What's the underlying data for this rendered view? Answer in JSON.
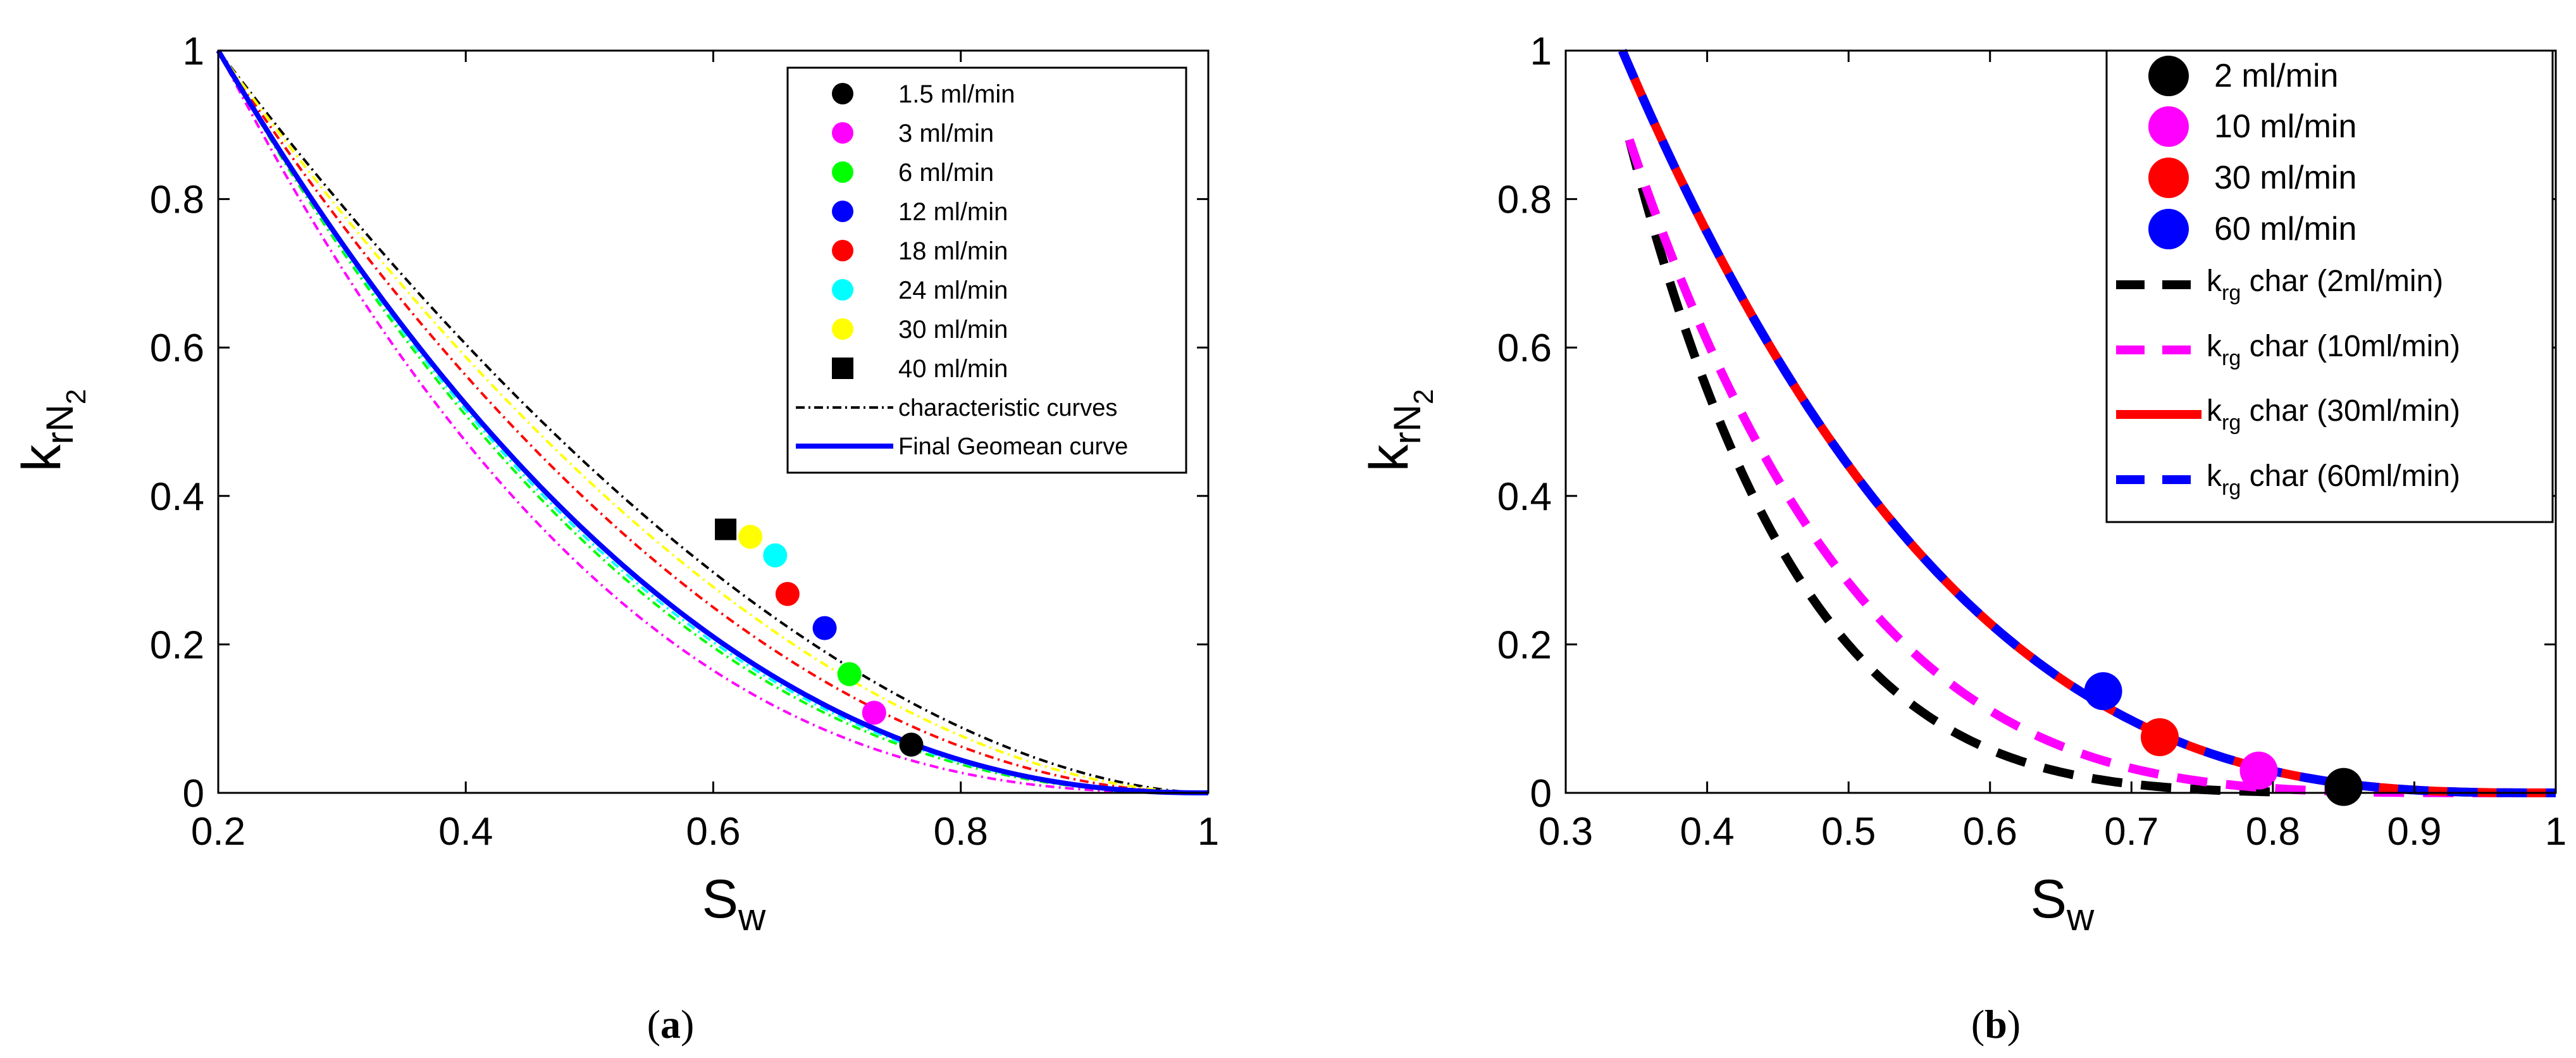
{
  "chart_data": [
    {
      "panel": "a",
      "caption_prefix": "(",
      "caption_letter": "a",
      "caption_suffix": ")",
      "type": "scatter",
      "xlim": [
        0.2,
        1
      ],
      "ylim": [
        0,
        1
      ],
      "xticks": [
        0.2,
        0.4,
        0.6,
        0.8,
        1
      ],
      "yticks": [
        0,
        0.2,
        0.4,
        0.6,
        0.8,
        1
      ],
      "xtick_labels": [
        "0.2",
        "0.4",
        "0.6",
        "0.8",
        "1"
      ],
      "ytick_labels": [
        "0",
        "0.2",
        "0.4",
        "0.6",
        "0.8",
        "1"
      ],
      "xlabel_main": "S",
      "xlabel_sub": "w",
      "ylabel_main": "k",
      "ylabel_sub1": "rN",
      "ylabel_sub2": "2",
      "grid": false,
      "legend_position": "top-right",
      "points": [
        {
          "name": "1.5 ml/min",
          "x": 0.76,
          "y": 0.065,
          "color": "#000000",
          "marker": "circle"
        },
        {
          "name": "3 ml/min",
          "x": 0.73,
          "y": 0.108,
          "color": "#ff00ff",
          "marker": "circle"
        },
        {
          "name": "6 ml/min",
          "x": 0.71,
          "y": 0.16,
          "color": "#00ff00",
          "marker": "circle"
        },
        {
          "name": "12 ml/min",
          "x": 0.69,
          "y": 0.222,
          "color": "#0000ff",
          "marker": "circle"
        },
        {
          "name": "18 ml/min",
          "x": 0.66,
          "y": 0.268,
          "color": "#ff0000",
          "marker": "circle"
        },
        {
          "name": "24 ml/min",
          "x": 0.65,
          "y": 0.32,
          "color": "#00ffff",
          "marker": "circle"
        },
        {
          "name": "30 ml/min",
          "x": 0.63,
          "y": 0.345,
          "color": "#ffff00",
          "marker": "circle"
        },
        {
          "name": "40 ml/min",
          "x": 0.61,
          "y": 0.355,
          "color": "#000000",
          "marker": "square"
        }
      ],
      "char_curves": [
        {
          "color": "#000000",
          "exponent": 1.75
        },
        {
          "color": "#ff00ff",
          "exponent": 2.6
        },
        {
          "color": "#00ff00",
          "exponent": 2.35
        },
        {
          "color": "#0000ff",
          "exponent": 2.25
        },
        {
          "color": "#ff0000",
          "exponent": 2.0
        },
        {
          "color": "#00ffff",
          "exponent": 2.3
        },
        {
          "color": "#ffff00",
          "exponent": 1.85
        }
      ],
      "final_curve": {
        "name": "Final Geomean curve",
        "color": "#0000ff",
        "exponent": 2.25
      },
      "char_curves_label": "characteristic curves"
    },
    {
      "panel": "b",
      "caption_prefix": "(",
      "caption_letter": "b",
      "caption_suffix": ")",
      "type": "scatter",
      "xlim": [
        0.3,
        1
      ],
      "ylim": [
        0,
        1
      ],
      "xticks": [
        0.3,
        0.4,
        0.5,
        0.6,
        0.7,
        0.8,
        0.9,
        1
      ],
      "yticks": [
        0,
        0.2,
        0.4,
        0.6,
        0.8,
        1
      ],
      "xtick_labels": [
        "0.3",
        "0.4",
        "0.5",
        "0.6",
        "0.7",
        "0.8",
        "0.9",
        "1"
      ],
      "ytick_labels": [
        "0",
        "0.2",
        "0.4",
        "0.6",
        "0.8",
        "1"
      ],
      "xlabel_main": "S",
      "xlabel_sub": "w",
      "ylabel_main": "k",
      "ylabel_sub1": "rN",
      "ylabel_sub2": "2",
      "grid": false,
      "legend_position": "top-right",
      "points": [
        {
          "name": "2 ml/min",
          "x": 0.85,
          "y": 0.008,
          "color": "#000000"
        },
        {
          "name": "10 ml/min",
          "x": 0.79,
          "y": 0.03,
          "color": "#ff00ff"
        },
        {
          "name": "30 ml/min",
          "x": 0.72,
          "y": 0.075,
          "color": "#ff0000"
        },
        {
          "name": "60 ml/min",
          "x": 0.68,
          "y": 0.137,
          "color": "#0000ff"
        }
      ],
      "curves": [
        {
          "legend_main": "k",
          "legend_sub": "rg",
          "legend_rest": " char (2ml/min)",
          "color": "#000000",
          "style": "dashed",
          "x0": 0.345,
          "y0": 0.88,
          "a": 5.5,
          "x1": 0.8
        },
        {
          "legend_main": "k",
          "legend_sub": "rg",
          "legend_rest": " char (10ml/min)",
          "color": "#ff00ff",
          "style": "dashed",
          "x0": 0.345,
          "y0": 0.88,
          "a": 4.2,
          "x1": 1.0
        },
        {
          "legend_main": "k",
          "legend_sub": "rg",
          "legend_rest": " char (30ml/min)",
          "color": "#ff0000",
          "style": "solid",
          "x0": 0.34,
          "y0": 1.0,
          "a": 2.95,
          "x1": 1.0
        },
        {
          "legend_main": "k",
          "legend_sub": "rg",
          "legend_rest": " char (60ml/min)",
          "color": "#0000ff",
          "style": "dashed",
          "x0": 0.34,
          "y0": 1.0,
          "a": 2.95,
          "x1": 1.0
        }
      ]
    }
  ]
}
